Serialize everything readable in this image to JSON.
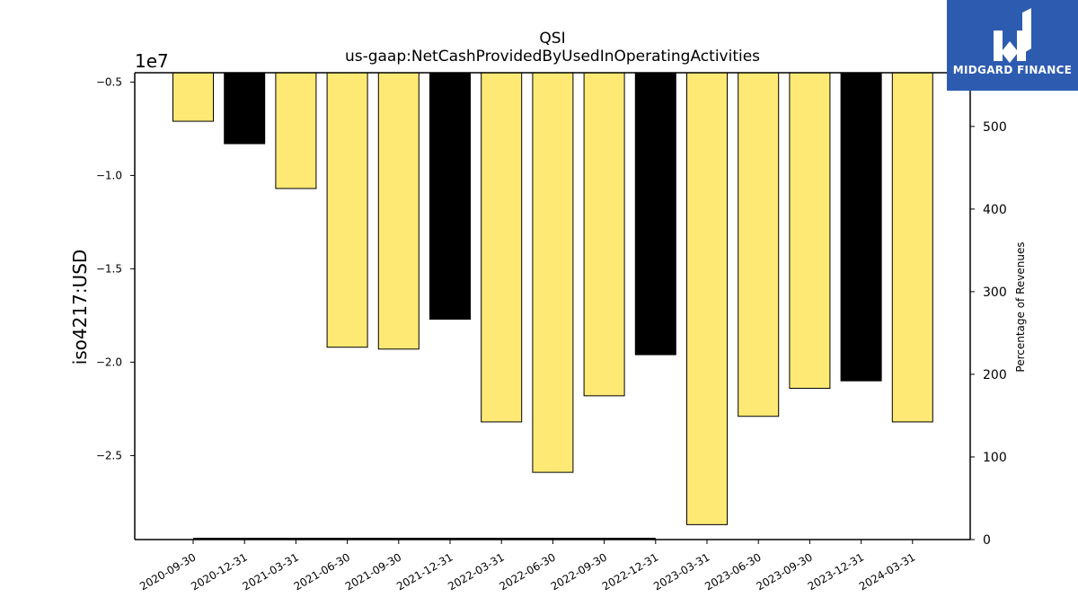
{
  "chart_data": {
    "type": "bar",
    "title": "QSI",
    "subtitle": "us-gaap:NetCashProvidedByUsedInOperatingActivities",
    "ylabel": "iso4217:USD",
    "y_offset_label": "1e7",
    "y2label": "Percentage of Revenues",
    "ylim": [
      -2.95,
      -0.45
    ],
    "y2lim": [
      0,
      565
    ],
    "categories": [
      "2020-09-30",
      "2020-12-31",
      "2021-03-31",
      "2021-06-30",
      "2021-09-30",
      "2021-12-31",
      "2022-03-31",
      "2022-06-30",
      "2022-09-30",
      "2022-12-31",
      "2023-03-31",
      "2023-06-30",
      "2023-09-30",
      "2023-12-31",
      "2024-03-31"
    ],
    "values": [
      -0.71,
      -0.83,
      -1.07,
      -1.92,
      -1.93,
      -1.77,
      -2.32,
      -2.59,
      -2.18,
      -1.96,
      -2.87,
      -2.29,
      -2.14,
      -2.1,
      -2.32
    ],
    "bar_colors": [
      "#fde974",
      "#000000",
      "#fde974",
      "#fde974",
      "#fde974",
      "#000000",
      "#fde974",
      "#fde974",
      "#fde974",
      "#000000",
      "#fde974",
      "#fde974",
      "#fde974",
      "#000000",
      "#fde974"
    ],
    "y_ticks": [
      -0.5,
      -1.0,
      -1.5,
      -2.0,
      -2.5
    ],
    "y_tick_labels": [
      "−0.5",
      "−1.0",
      "−1.5",
      "−2.0",
      "−2.5"
    ],
    "y2_ticks": [
      0,
      100,
      200,
      300,
      400,
      500
    ],
    "y2_tick_labels": [
      "0",
      "100",
      "200",
      "300",
      "400",
      "500"
    ],
    "secondary_series": {
      "x_range": [
        "2020-09-30",
        "2022-12-31"
      ],
      "value": 0
    },
    "grid": false,
    "legend": "none"
  },
  "logo": {
    "text": "MIDGARD FINANCE",
    "color": "#2d5bb0"
  }
}
